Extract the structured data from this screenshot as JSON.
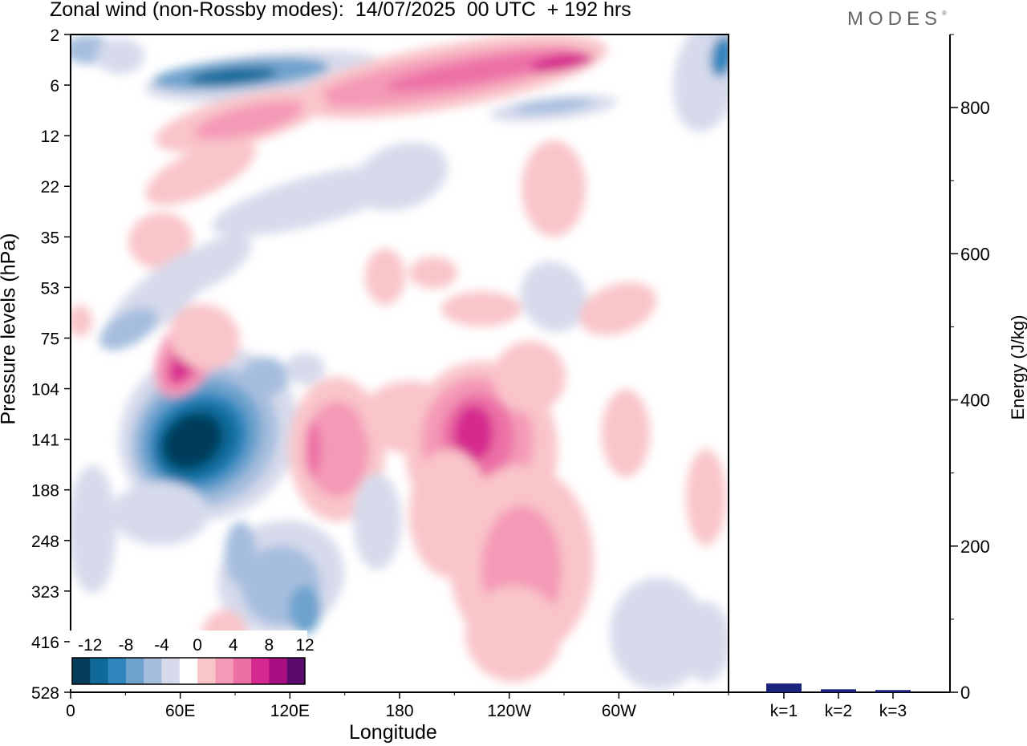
{
  "header": {
    "title": "Zonal wind (non-Rossby modes):  14/07/2025  00 UTC  + 192 hrs",
    "brand": "MODES",
    "brand_mark": "®"
  },
  "colorbar": {
    "labels": [
      "-12",
      "-8",
      "-4",
      "0",
      "4",
      "8",
      "12"
    ],
    "colors": [
      "#063d5b",
      "#0f6a9a",
      "#2f86bd",
      "#6ea3cd",
      "#a6bede",
      "#d6daeb",
      "#ffffff",
      "#f9c5c9",
      "#f49ab7",
      "#ec6fa6",
      "#d6298f",
      "#a80f83",
      "#5b0a6e"
    ]
  },
  "chart_data": [
    {
      "type": "heatmap",
      "title": "Zonal wind (non-Rossby modes):  14/07/2025  00 UTC  + 192 hrs",
      "xlabel": "Longitude",
      "ylabel": "Pressure levels (hPa)",
      "x_ticks": [
        "0",
        "60E",
        "120E",
        "180",
        "120W",
        "60W"
      ],
      "y_ticks": [
        "2",
        "6",
        "12",
        "22",
        "35",
        "53",
        "75",
        "104",
        "141",
        "188",
        "248",
        "323",
        "416",
        "528"
      ],
      "y_scale": "log-like pressure levels, top to bottom",
      "levels": [
        -12,
        -8,
        -4,
        0,
        4,
        8,
        12
      ]
    },
    {
      "type": "bar",
      "categories": [
        "k=1",
        "k=2",
        "k=3"
      ],
      "values": [
        12,
        4,
        3
      ],
      "xlabel": "",
      "ylabel": "Energy (J/kg)",
      "ylim": [
        0,
        900
      ],
      "y_ticks": [
        "0",
        "200",
        "400",
        "600",
        "800"
      ],
      "bar_color": "#1a237e"
    }
  ]
}
